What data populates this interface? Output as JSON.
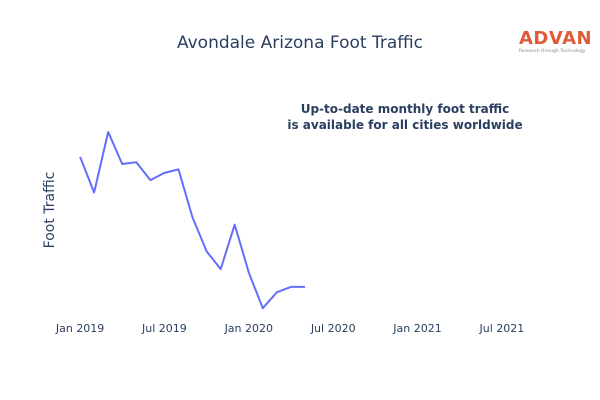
{
  "chart_data": {
    "type": "line",
    "title": "Avondale Arizona Foot Traffic",
    "xlabel": "",
    "ylabel": "Foot Traffic",
    "annotation": [
      "Up-to-date monthly foot traffic",
      "is available for all cities worldwide"
    ],
    "x_tick_labels": [
      "Jan 2019",
      "Jul 2019",
      "Jan 2020",
      "Jul 2020",
      "Jan 2021",
      "Jul 2021"
    ],
    "x_tick_dates": [
      "2019-01",
      "2019-07",
      "2020-01",
      "2020-07",
      "2021-01",
      "2021-07"
    ],
    "xlim": [
      "2018-12",
      "2021-09"
    ],
    "ylim": [
      0,
      100
    ],
    "y_ticks_visible": false,
    "grid": false,
    "legend": "none",
    "line_color": "#636efa",
    "series": [
      {
        "x": [
          "2019-01",
          "2019-02",
          "2019-03",
          "2019-04",
          "2019-05",
          "2019-06",
          "2019-07",
          "2019-08",
          "2019-09",
          "2019-10",
          "2019-11",
          "2019-12",
          "2020-01",
          "2020-02",
          "2020-03",
          "2020-04",
          "2020-05"
        ],
        "values": [
          86,
          66,
          100,
          82,
          83,
          73,
          77,
          79,
          52,
          33,
          23,
          48,
          21,
          1,
          10,
          13,
          13
        ]
      }
    ]
  },
  "logo": {
    "word": "ADVAN",
    "tagline": "Research through Technology",
    "color": "#e05a3a"
  }
}
